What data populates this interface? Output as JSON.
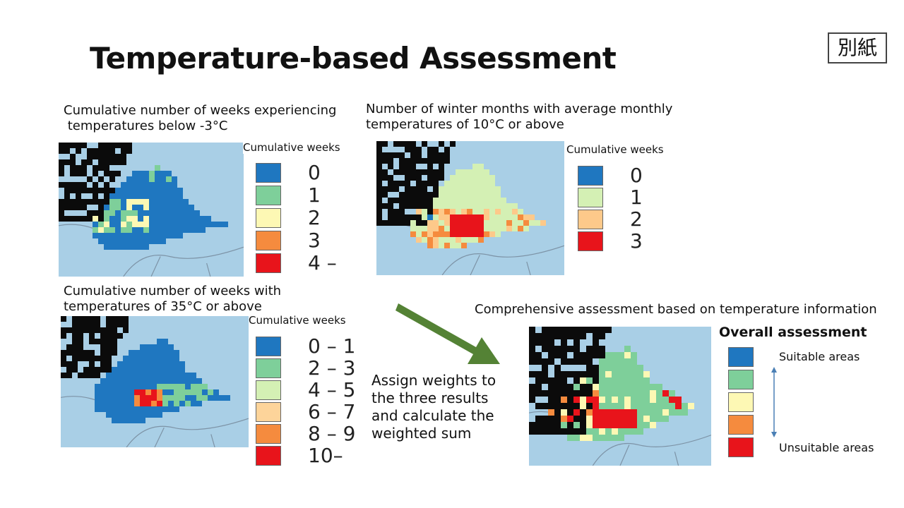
{
  "title": "Temperature-based Assessment",
  "badge": "別紙",
  "colors": {
    "blue": "#1f77c0",
    "green": "#7ecf9a",
    "light_green": "#d4f0b4",
    "light_yellow": "#fdf8b4",
    "peach": "#fdd49a",
    "orange": "#f58b3e",
    "red": "#e8141b",
    "sea": "#a9cfe6",
    "land": "#bfcfd8",
    "black": "#0b0b0b",
    "arrow_green": "#548235"
  },
  "panel1": {
    "caption": "Cumulative number of weeks experiencing\n temperatures below -3°C",
    "legend_title": "Cumulative weeks",
    "legend": [
      {
        "label": "0",
        "color": "#1f77c0"
      },
      {
        "label": "1",
        "color": "#7ecf9a"
      },
      {
        "label": "2",
        "color": "#fdf8b4"
      },
      {
        "label": "3",
        "color": "#f58b3e"
      },
      {
        "label": "4 –",
        "color": "#e8141b"
      }
    ]
  },
  "panel2": {
    "caption": "Number of winter months with average monthly\ntemperatures of 10°C or above",
    "legend_title": "Cumulative weeks",
    "legend": [
      {
        "label": "0",
        "color": "#1f77c0"
      },
      {
        "label": "1",
        "color": "#d4f0b4"
      },
      {
        "label": "2",
        "color": "#fdc98a"
      },
      {
        "label": "3",
        "color": "#e8141b"
      }
    ]
  },
  "panel3": {
    "caption": "Cumulative number of weeks with\ntemperatures of 35°C or above",
    "legend_title": "Cumulative weeks",
    "legend": [
      {
        "label": "0 – 1",
        "color": "#1f77c0"
      },
      {
        "label": "2 – 3",
        "color": "#7ecf9a"
      },
      {
        "label": "4 – 5",
        "color": "#d4f0b4"
      },
      {
        "label": "6 – 7",
        "color": "#fdd49a"
      },
      {
        "label": "8 – 9",
        "color": "#f58b3e"
      },
      {
        "label": "10–",
        "color": "#e8141b"
      }
    ]
  },
  "arrow_text": "Assign weights to\nthe three results\nand calculate the\nweighted sum",
  "panel4": {
    "caption": "Comprehensive assessment based on temperature information",
    "legend_title": "Overall assessment",
    "legend_colors": [
      "#1f77c0",
      "#7ecf9a",
      "#fdf8b4",
      "#f58b3e",
      "#e8141b"
    ],
    "top_label": "Suitable areas",
    "bottom_label": "Unsuitable areas"
  }
}
